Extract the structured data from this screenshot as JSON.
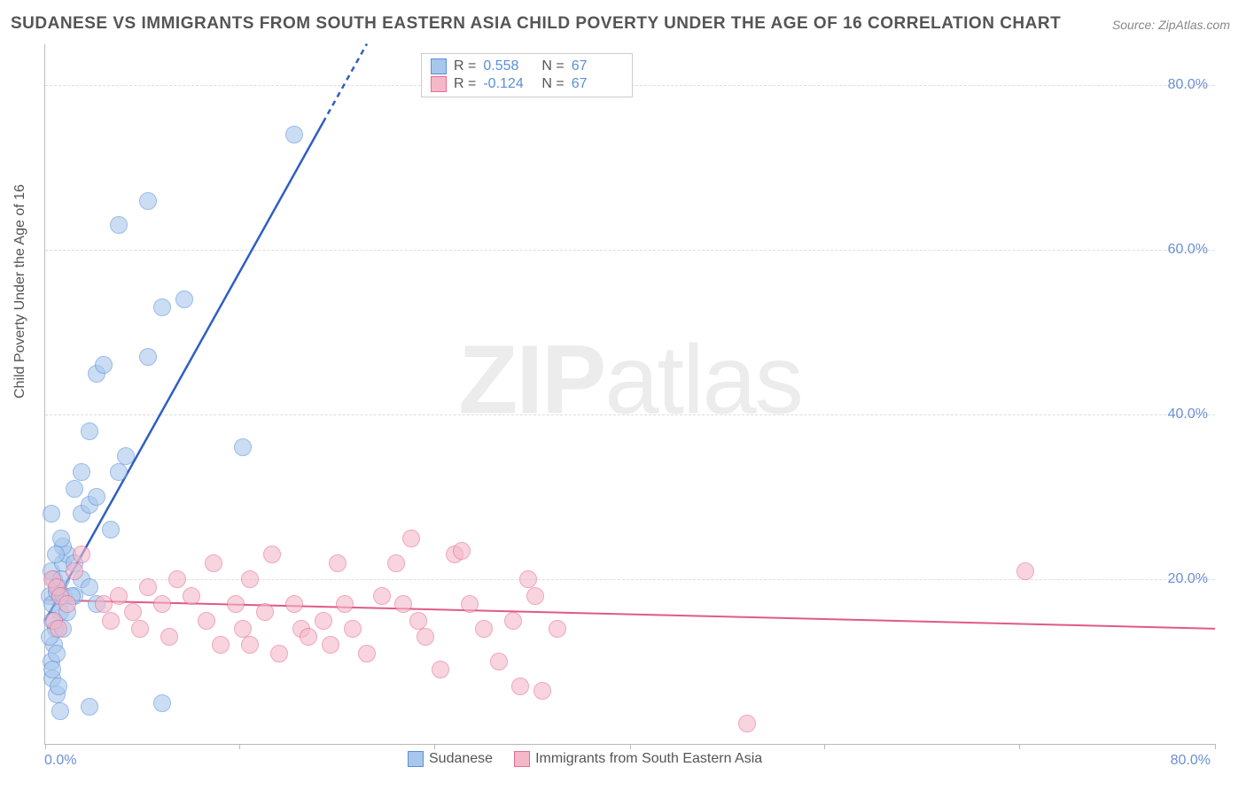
{
  "title": "SUDANESE VS IMMIGRANTS FROM SOUTH EASTERN ASIA CHILD POVERTY UNDER THE AGE OF 16 CORRELATION CHART",
  "source": "Source: ZipAtlas.com",
  "ylabel": "Child Poverty Under the Age of 16",
  "watermark_a": "ZIP",
  "watermark_b": "atlas",
  "chart": {
    "type": "scatter",
    "xlim": [
      0,
      80
    ],
    "ylim": [
      0,
      85
    ],
    "ytick_labels": [
      "20.0%",
      "40.0%",
      "60.0%",
      "80.0%"
    ],
    "ytick_vals": [
      20,
      40,
      60,
      80
    ],
    "xtick_vals": [
      0,
      13.3,
      26.6,
      40,
      53.3,
      66.6,
      80
    ],
    "x_origin_label": "0.0%",
    "x_max_label": "80.0%",
    "background_color": "#ffffff",
    "grid_color": "#dddddd",
    "axis_color": "#bbbbbb",
    "marker_radius": 9,
    "marker_opacity": 0.6,
    "series": [
      {
        "name": "Sudanese",
        "color_fill": "#a8c7ec",
        "color_stroke": "#5a8fd8",
        "legend_label": "Sudanese",
        "R": "0.558",
        "N": "67",
        "trend": {
          "x1": 0,
          "y1": 15,
          "x2": 22,
          "y2": 85,
          "dash_x1": 19,
          "dash_y1": 75.5,
          "color": "#2f5fc1",
          "width": 2.5
        },
        "points": [
          [
            0.3,
            18
          ],
          [
            0.5,
            17
          ],
          [
            0.6,
            20
          ],
          [
            0.8,
            18.5
          ],
          [
            0.9,
            19
          ],
          [
            1.0,
            16
          ],
          [
            0.5,
            15
          ],
          [
            0.7,
            14
          ],
          [
            0.4,
            21
          ],
          [
            1.2,
            22
          ],
          [
            1.1,
            20
          ],
          [
            1.3,
            18
          ],
          [
            0.5,
            8
          ],
          [
            0.8,
            6
          ],
          [
            1.0,
            4
          ],
          [
            3.0,
            4.5
          ],
          [
            8.0,
            5
          ],
          [
            1.5,
            23
          ],
          [
            1.2,
            24
          ],
          [
            2.0,
            22
          ],
          [
            2.5,
            20
          ],
          [
            2.0,
            18
          ],
          [
            3.0,
            19
          ],
          [
            3.5,
            17
          ],
          [
            0.4,
            28
          ],
          [
            2.5,
            28
          ],
          [
            3.0,
            29
          ],
          [
            3.5,
            30
          ],
          [
            2.0,
            31
          ],
          [
            2.5,
            33
          ],
          [
            5.0,
            33
          ],
          [
            5.5,
            35
          ],
          [
            3.0,
            38
          ],
          [
            3.5,
            45
          ],
          [
            4.0,
            46
          ],
          [
            7.0,
            47
          ],
          [
            8.0,
            53
          ],
          [
            9.5,
            54
          ],
          [
            5.0,
            63
          ],
          [
            7.0,
            66
          ],
          [
            17.0,
            74
          ],
          [
            13.5,
            36
          ],
          [
            4.5,
            26
          ],
          [
            0.6,
            12
          ],
          [
            0.4,
            10
          ],
          [
            0.8,
            11
          ],
          [
            0.3,
            13
          ],
          [
            0.5,
            9
          ],
          [
            0.9,
            7
          ],
          [
            1.2,
            14
          ],
          [
            1.5,
            16
          ],
          [
            1.8,
            18
          ],
          [
            1.1,
            25
          ],
          [
            0.7,
            23
          ]
        ]
      },
      {
        "name": "Immigrants from South Eastern Asia",
        "color_fill": "#f4b8c9",
        "color_stroke": "#e86b94",
        "legend_label": "Immigrants from South Eastern Asia",
        "R": "-0.124",
        "N": "67",
        "trend": {
          "x1": 0,
          "y1": 17.5,
          "x2": 80,
          "y2": 14,
          "color": "#e05a87",
          "width": 2
        },
        "points": [
          [
            0.5,
            20
          ],
          [
            0.8,
            19
          ],
          [
            1.0,
            18
          ],
          [
            1.5,
            17
          ],
          [
            2.0,
            21
          ],
          [
            2.5,
            23
          ],
          [
            0.6,
            15
          ],
          [
            0.9,
            14
          ],
          [
            4,
            17
          ],
          [
            4.5,
            15
          ],
          [
            5,
            18
          ],
          [
            6,
            16
          ],
          [
            6.5,
            14
          ],
          [
            7,
            19
          ],
          [
            8,
            17
          ],
          [
            8.5,
            13
          ],
          [
            9,
            20
          ],
          [
            10,
            18
          ],
          [
            11,
            15
          ],
          [
            11.5,
            22
          ],
          [
            12,
            12
          ],
          [
            13,
            17
          ],
          [
            13.5,
            14
          ],
          [
            14,
            20
          ],
          [
            14,
            12
          ],
          [
            15,
            16
          ],
          [
            15.5,
            23
          ],
          [
            16,
            11
          ],
          [
            17,
            17
          ],
          [
            17.5,
            14
          ],
          [
            18,
            13
          ],
          [
            19,
            15
          ],
          [
            19.5,
            12
          ],
          [
            20,
            22
          ],
          [
            20.5,
            17
          ],
          [
            21,
            14
          ],
          [
            22,
            11
          ],
          [
            23,
            18
          ],
          [
            24,
            22
          ],
          [
            24.5,
            17
          ],
          [
            25,
            25
          ],
          [
            25.5,
            15
          ],
          [
            26,
            13
          ],
          [
            27,
            9
          ],
          [
            28,
            23
          ],
          [
            28.5,
            23.5
          ],
          [
            29,
            17
          ],
          [
            30,
            14
          ],
          [
            31,
            10
          ],
          [
            32,
            15
          ],
          [
            32.5,
            7
          ],
          [
            33,
            20
          ],
          [
            33.5,
            18
          ],
          [
            34,
            6.5
          ],
          [
            35,
            14
          ],
          [
            48,
            2.5
          ],
          [
            67,
            21
          ]
        ]
      }
    ]
  },
  "stat_legend": {
    "label_R": "R =",
    "label_N": "N ="
  }
}
